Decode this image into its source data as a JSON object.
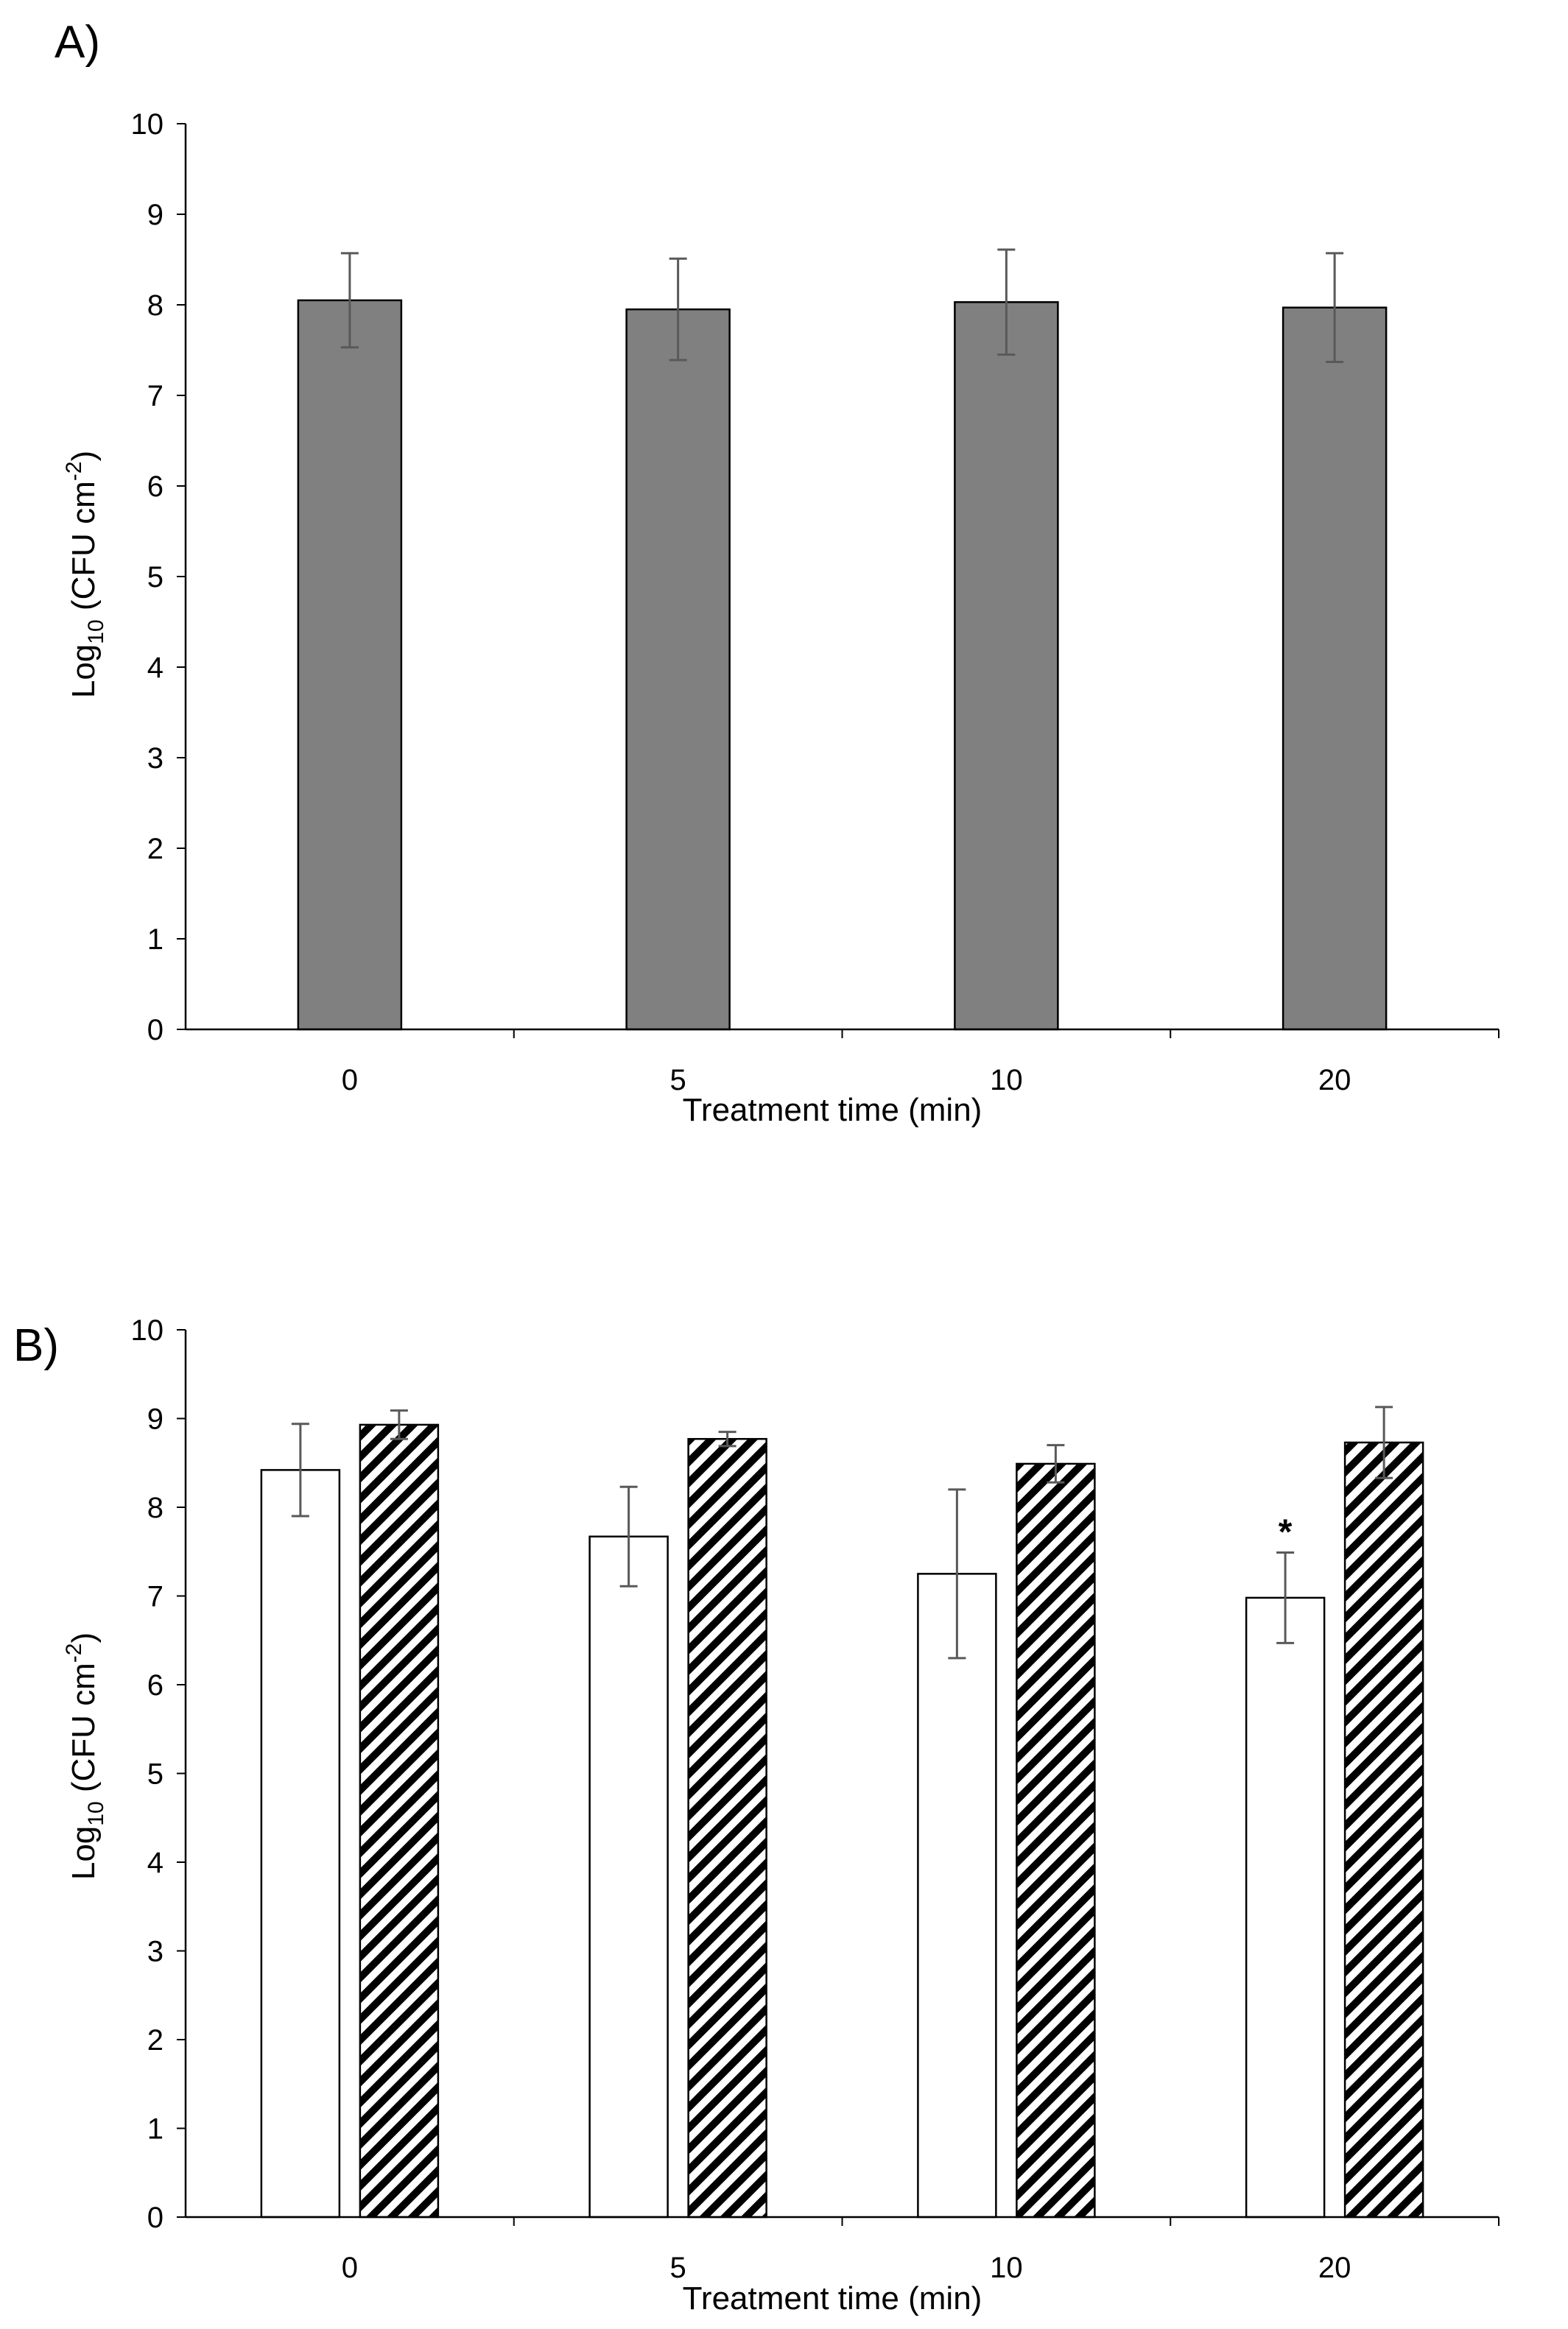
{
  "colors": {
    "panel_a_fill": "#808080",
    "open_fill": "#ffffff",
    "bar_stroke": "#000000",
    "error_bar": "#595959",
    "hatch": "#000000",
    "axis": "#000000"
  },
  "chart_data": [
    {
      "type": "bar",
      "panel_label": "A)",
      "categories": [
        "0",
        "5",
        "10",
        "20"
      ],
      "series": [
        {
          "name": "",
          "fill": "solid-gray",
          "values": [
            8.05,
            7.95,
            8.03,
            7.97
          ],
          "errors": [
            0.52,
            0.56,
            0.58,
            0.6
          ]
        }
      ],
      "xlabel": "Treatment time (min)",
      "ylabel": {
        "prefix": "Log",
        "sub": "10",
        "suffix": " (CFU cm",
        "sup": "-2",
        "close": ")"
      },
      "ylim": [
        0,
        10
      ],
      "yticks": [
        "0",
        "1",
        "2",
        "3",
        "4",
        "5",
        "6",
        "7",
        "8",
        "9",
        "10"
      ],
      "annotations": []
    },
    {
      "type": "bar",
      "panel_label": "B)",
      "categories": [
        "0",
        "5",
        "10",
        "20"
      ],
      "series": [
        {
          "name": "",
          "fill": "open",
          "values": [
            8.42,
            7.67,
            7.25,
            6.98
          ],
          "errors": [
            0.52,
            0.56,
            0.95,
            0.51
          ]
        },
        {
          "name": "",
          "fill": "hatched",
          "values": [
            8.93,
            8.77,
            8.49,
            8.73
          ],
          "errors": [
            0.16,
            0.08,
            0.21,
            0.4
          ]
        }
      ],
      "xlabel": "Treatment time (min)",
      "ylabel": {
        "prefix": "Log",
        "sub": "10",
        "suffix": " (CFU cm",
        "sup": "-2",
        "close": ")"
      },
      "ylim": [
        0,
        10
      ],
      "yticks": [
        "0",
        "1",
        "2",
        "3",
        "4",
        "5",
        "6",
        "7",
        "8",
        "9",
        "10"
      ],
      "annotations": [
        {
          "text": "*",
          "series": 0,
          "category": 3
        }
      ]
    }
  ]
}
